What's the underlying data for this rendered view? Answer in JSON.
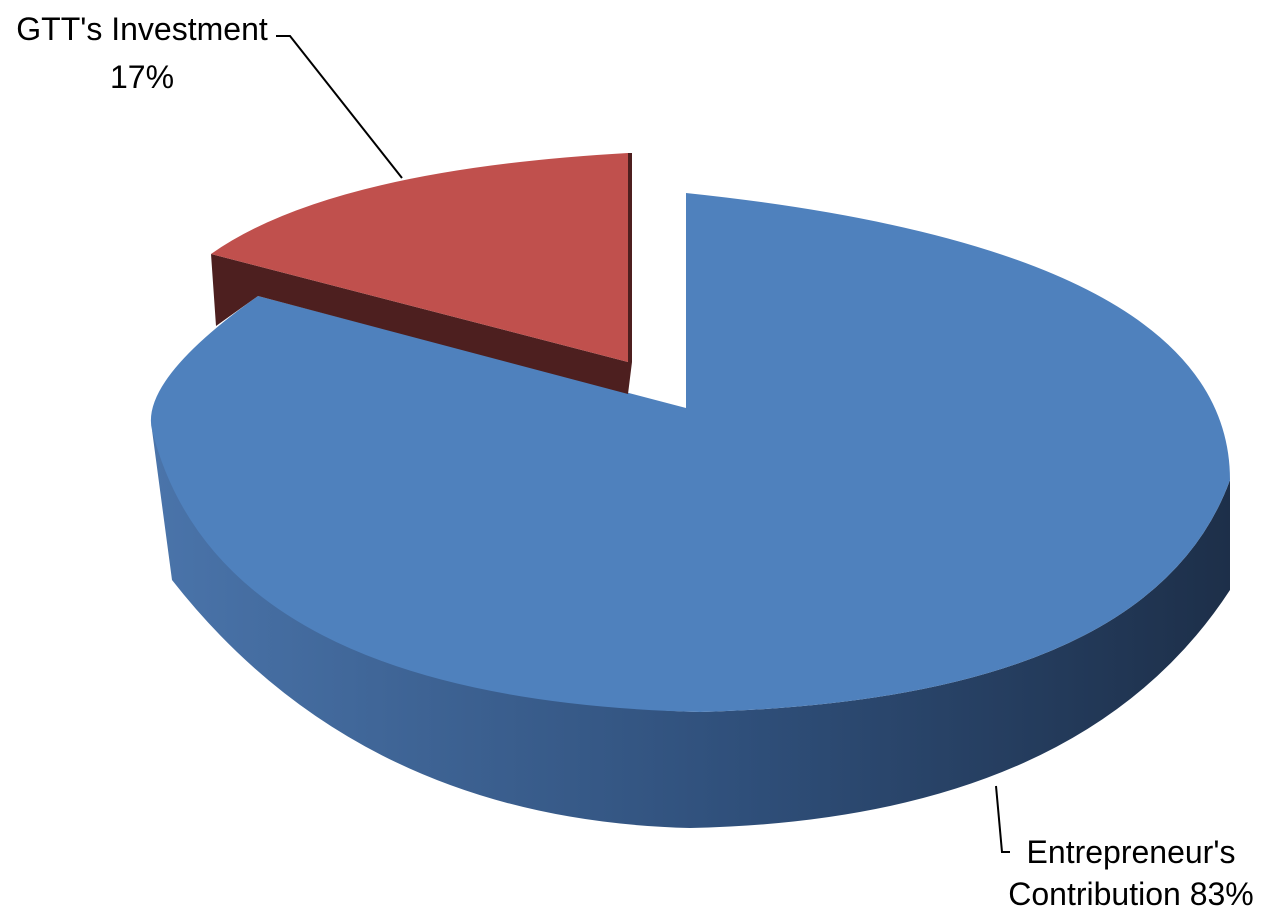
{
  "chart_data": {
    "type": "pie",
    "title": "",
    "style": "3d-exploded",
    "slices": [
      {
        "name": "GTT's Investment",
        "value": 17,
        "label_lines": [
          "GTT's Investment",
          "17%"
        ],
        "color": "#c0504d",
        "side_color": "#4d1f1f"
      },
      {
        "name": "Entrepreneur's Contribution",
        "value": 83,
        "label_lines": [
          "Entrepreneur's",
          "Contribution 83%"
        ],
        "color": "#4f81bd",
        "side_color": "#2a4466"
      }
    ]
  }
}
